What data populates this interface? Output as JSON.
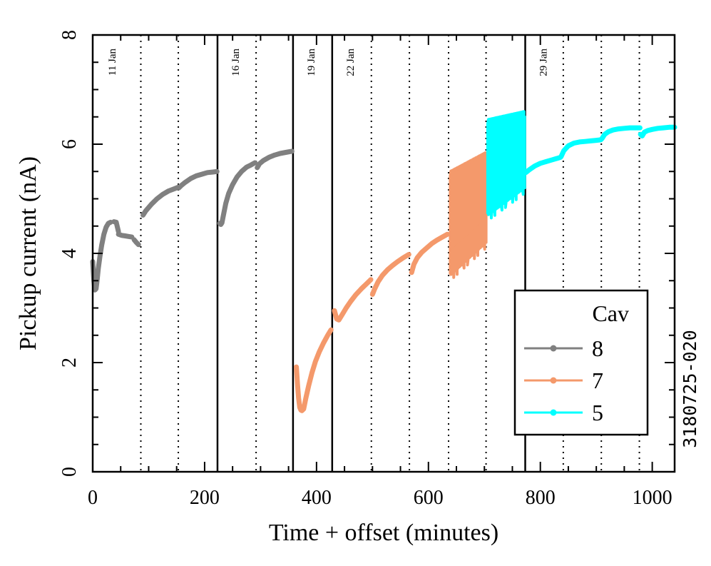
{
  "chart_data": {
    "type": "line",
    "xlabel": "Time + offset (minutes)",
    "ylabel": "Pickup current (nA)",
    "xlim": [
      0,
      1040
    ],
    "ylim": [
      0,
      8
    ],
    "x_ticks": [
      0,
      200,
      400,
      600,
      800,
      1000
    ],
    "y_ticks": [
      0,
      2,
      4,
      6,
      8
    ],
    "side_label": "3180725-020",
    "legend": {
      "title": "Cav",
      "placement": "bottom-right"
    },
    "colors": {
      "8": "#808080",
      "7": "#f4996b",
      "5": "#00ffff"
    },
    "day_boundaries": [
      {
        "x": 223,
        "label": "16 Jan"
      },
      {
        "x": 358,
        "label": "19 Jan"
      },
      {
        "x": 428,
        "label": "22 Jan"
      },
      {
        "x": 773,
        "label": "29 Jan"
      }
    ],
    "first_day_label": "11 Jan",
    "dotted_lines": [
      86,
      153,
      292,
      498,
      566,
      636,
      703,
      841,
      909,
      977
    ],
    "series": [
      {
        "name": "8",
        "segments": [
          {
            "x": [
              0,
              2,
              4,
              6,
              8,
              10,
              13,
              16,
              20,
              24,
              28,
              32
            ],
            "y": [
              3.85,
              3.5,
              3.33,
              3.35,
              3.52,
              3.72,
              3.95,
              4.15,
              4.35,
              4.48,
              4.55,
              4.57
            ]
          },
          {
            "x": [
              38,
              42,
              46
            ],
            "y": [
              4.58,
              4.57,
              4.4
            ]
          },
          {
            "x": [
              46,
              52,
              58,
              64,
              70
            ],
            "y": [
              4.35,
              4.33,
              4.32,
              4.31,
              4.3
            ]
          },
          {
            "x": [
              74,
              78,
              82
            ],
            "y": [
              4.25,
              4.2,
              4.16
            ]
          },
          {
            "x": [
              90,
              95,
              105,
              115,
              125,
              135,
              145,
              155
            ],
            "y": [
              4.7,
              4.78,
              4.9,
              5.0,
              5.08,
              5.14,
              5.18,
              5.22
            ]
          },
          {
            "x": [
              154,
              158,
              165,
              175,
              185,
              195,
              205,
              215,
              222
            ],
            "y": [
              5.2,
              5.24,
              5.3,
              5.37,
              5.42,
              5.45,
              5.48,
              5.49,
              5.5
            ]
          },
          {
            "x": [
              227,
              229,
              231,
              234,
              238,
              243,
              250,
              258,
              266,
              275,
              283,
              290
            ],
            "y": [
              4.55,
              4.53,
              4.56,
              4.72,
              4.92,
              5.1,
              5.26,
              5.4,
              5.5,
              5.58,
              5.62,
              5.66
            ]
          },
          {
            "x": [
              294,
              298,
              305,
              315,
              325,
              335,
              345,
              356
            ],
            "y": [
              5.57,
              5.64,
              5.7,
              5.76,
              5.8,
              5.83,
              5.85,
              5.87
            ]
          }
        ]
      },
      {
        "name": "7",
        "segments": [
          {
            "x": [
              364,
              366,
              368,
              370,
              372,
              374,
              377,
              381,
              386,
              392,
              398,
              405,
              412,
              420,
              426
            ],
            "y": [
              1.92,
              1.6,
              1.35,
              1.18,
              1.13,
              1.12,
              1.15,
              1.35,
              1.58,
              1.82,
              2.02,
              2.2,
              2.35,
              2.5,
              2.6
            ]
          },
          {
            "x": [
              432,
              436,
              440,
              446,
              453,
              461,
              470,
              480,
              490,
              497
            ],
            "y": [
              2.95,
              2.8,
              2.78,
              2.88,
              3.0,
              3.12,
              3.24,
              3.35,
              3.45,
              3.52
            ]
          },
          {
            "x": [
              500,
              504,
              510,
              518,
              527,
              536,
              545,
              555,
              565
            ],
            "y": [
              3.25,
              3.35,
              3.48,
              3.6,
              3.7,
              3.78,
              3.85,
              3.92,
              3.98
            ]
          },
          {
            "x": [
              570,
              574,
              580,
              588,
              597,
              606,
              615,
              625,
              634
            ],
            "y": [
              3.65,
              3.8,
              3.92,
              4.02,
              4.1,
              4.18,
              4.24,
              4.3,
              4.35
            ]
          }
        ],
        "band": {
          "x": [
            639,
            703
          ],
          "low": [
            3.6,
            4.2
          ],
          "high": [
            5.5,
            5.85
          ]
        }
      },
      {
        "name": "5",
        "band": {
          "x": [
            706,
            772
          ],
          "low": [
            4.7,
            5.2
          ],
          "high": [
            6.45,
            6.6
          ]
        },
        "segments": [
          {
            "x": [
              774,
              780,
              790,
              800,
              810,
              820,
              830,
              836
            ],
            "y": [
              5.48,
              5.53,
              5.6,
              5.65,
              5.68,
              5.71,
              5.74,
              5.76
            ]
          },
          {
            "x": [
              837,
              842,
              850,
              860,
              870,
              880,
              890,
              900,
              908
            ],
            "y": [
              5.77,
              5.88,
              5.97,
              6.02,
              6.04,
              6.05,
              6.06,
              6.07,
              6.08
            ]
          },
          {
            "x": [
              910,
              915,
              922,
              930,
              940,
              950,
              960,
              970,
              978
            ],
            "y": [
              6.1,
              6.18,
              6.23,
              6.26,
              6.28,
              6.29,
              6.3,
              6.3,
              6.3
            ]
          },
          {
            "x": [
              979,
              982,
              986,
              992,
              1000,
              1010,
              1020,
              1030,
              1040
            ],
            "y": [
              6.18,
              6.15,
              6.22,
              6.25,
              6.27,
              6.29,
              6.3,
              6.31,
              6.31
            ]
          }
        ]
      }
    ]
  }
}
